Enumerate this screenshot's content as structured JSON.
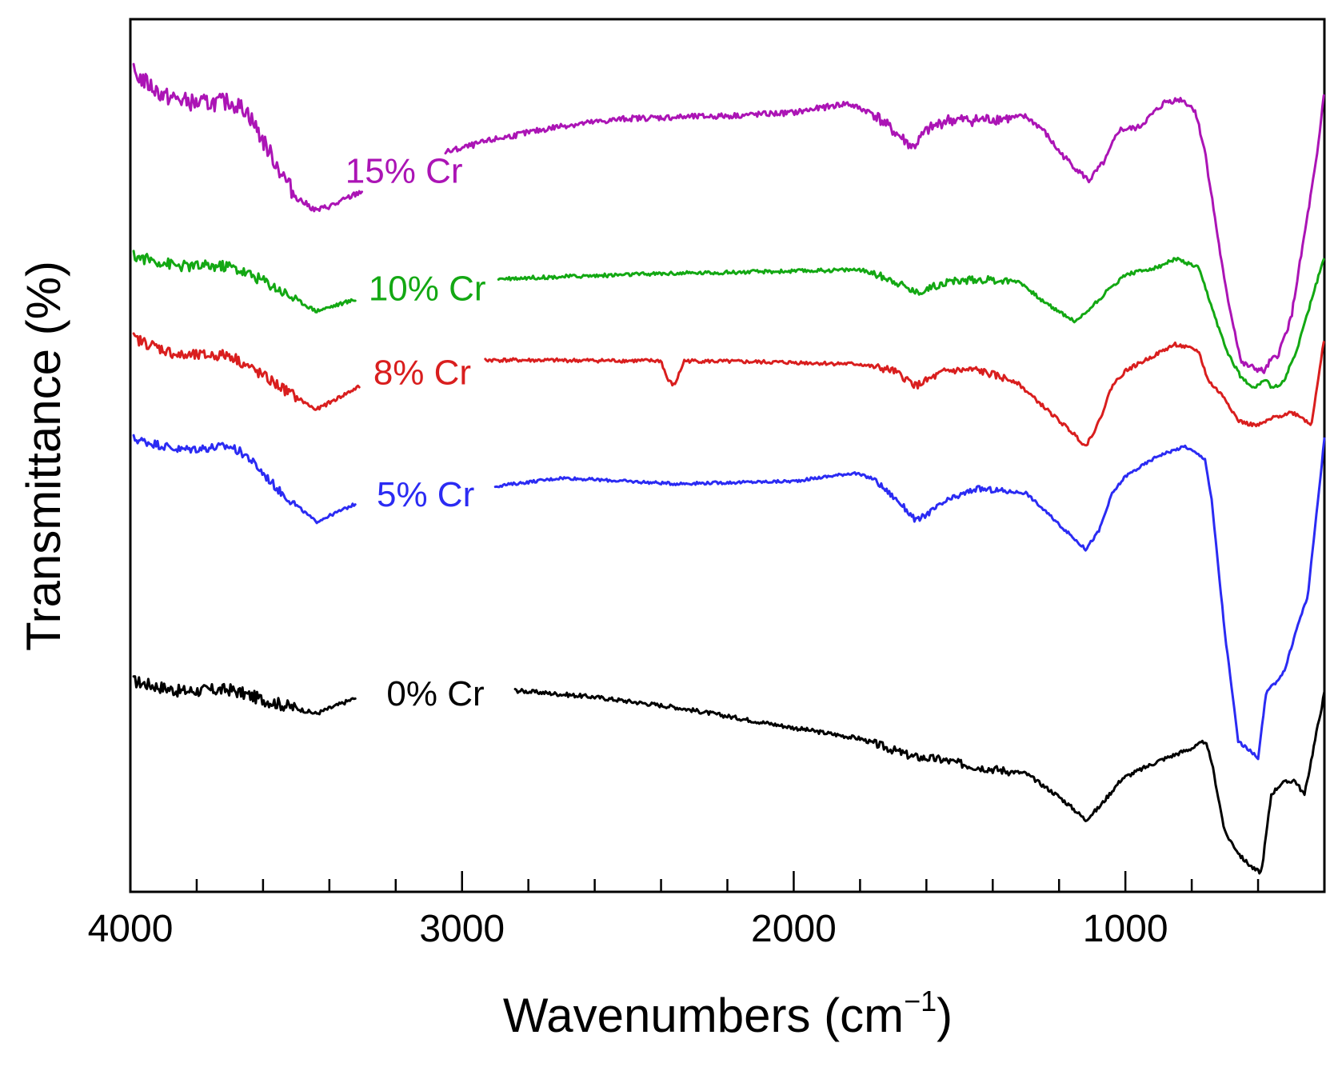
{
  "chart_data": {
    "type": "line",
    "title": "",
    "xlabel": "Wavenumbers (cm",
    "xlabel_sup": "−1",
    "xlabel_close": ")",
    "ylabel": "Transmittance (%)",
    "xlim": [
      4000,
      400
    ],
    "ylim": [
      0,
      100
    ],
    "x_ticks": [
      4000,
      3000,
      2000,
      1000
    ],
    "x_minor_step": 200,
    "grid": false,
    "legend": "inline labels",
    "series": [
      {
        "name": "0% Cr",
        "color": "#000000",
        "noise": 0.5,
        "label_at": 3150,
        "gap": [
          3320,
          2840
        ],
        "points": [
          [
            3990,
            24.2
          ],
          [
            3850,
            23.0
          ],
          [
            3700,
            23.2
          ],
          [
            3600,
            22.0
          ],
          [
            3440,
            20.3
          ],
          [
            3320,
            22.2
          ],
          [
            2840,
            23.1
          ],
          [
            2600,
            22.3
          ],
          [
            2360,
            21.1
          ],
          [
            2000,
            18.6
          ],
          [
            1800,
            17.3
          ],
          [
            1640,
            15.1
          ],
          [
            1560,
            14.8
          ],
          [
            1450,
            13.9
          ],
          [
            1300,
            13.1
          ],
          [
            1200,
            10.3
          ],
          [
            1150,
            8.6
          ],
          [
            1120,
            7.5
          ],
          [
            1080,
            9.0
          ],
          [
            1010,
            12.5
          ],
          [
            900,
            14.6
          ],
          [
            790,
            16.3
          ],
          [
            760,
            17.0
          ],
          [
            740,
            14.5
          ],
          [
            700,
            6.0
          ],
          [
            650,
            3.0
          ],
          [
            610,
            1.5
          ],
          [
            590,
            1.2
          ],
          [
            560,
            10.6
          ],
          [
            530,
            11.9
          ],
          [
            490,
            12.3
          ],
          [
            460,
            10.5
          ],
          [
            420,
            18.8
          ],
          [
            400,
            22.8
          ]
        ]
      },
      {
        "name": "5% Cr",
        "color": "#2b2bf3",
        "noise": 0.35,
        "label_at": 3150,
        "gap": [
          3320,
          2900
        ],
        "points": [
          [
            3990,
            53.4
          ],
          [
            3850,
            52.1
          ],
          [
            3700,
            52.5
          ],
          [
            3650,
            51.4
          ],
          [
            3550,
            47.1
          ],
          [
            3440,
            43.4
          ],
          [
            3320,
            45.6
          ],
          [
            2900,
            47.7
          ],
          [
            2700,
            48.7
          ],
          [
            2360,
            48.0
          ],
          [
            2000,
            48.3
          ],
          [
            1820,
            49.3
          ],
          [
            1760,
            48.6
          ],
          [
            1680,
            45.7
          ],
          [
            1630,
            43.5
          ],
          [
            1540,
            45.9
          ],
          [
            1450,
            47.4
          ],
          [
            1300,
            46.9
          ],
          [
            1200,
            43.1
          ],
          [
            1120,
            40.1
          ],
          [
            1080,
            42.3
          ],
          [
            1040,
            46.8
          ],
          [
            1000,
            48.9
          ],
          [
            900,
            51.4
          ],
          [
            820,
            52.5
          ],
          [
            760,
            51.0
          ],
          [
            740,
            46.0
          ],
          [
            700,
            30.0
          ],
          [
            660,
            17.0
          ],
          [
            630,
            16.0
          ],
          [
            600,
            15.0
          ],
          [
            575,
            22.9
          ],
          [
            550,
            23.9
          ],
          [
            520,
            25.5
          ],
          [
            480,
            31.0
          ],
          [
            450,
            34.5
          ],
          [
            400,
            53.4
          ]
        ]
      },
      {
        "name": "8% Cr",
        "color": "#d91e1e",
        "noise": 0.45,
        "label_at": 3150,
        "gap": [
          3310,
          2930
        ],
        "points": [
          [
            3990,
            65.5
          ],
          [
            3850,
            63.4
          ],
          [
            3700,
            63.5
          ],
          [
            3600,
            61.0
          ],
          [
            3440,
            56.9
          ],
          [
            3310,
            59.7
          ],
          [
            2930,
            62.9
          ],
          [
            2400,
            62.8
          ],
          [
            2380,
            60.5
          ],
          [
            2360,
            59.8
          ],
          [
            2330,
            62.8
          ],
          [
            2000,
            62.6
          ],
          [
            1800,
            62.4
          ],
          [
            1700,
            61.6
          ],
          [
            1630,
            59.8
          ],
          [
            1540,
            61.6
          ],
          [
            1450,
            61.7
          ],
          [
            1330,
            60.3
          ],
          [
            1250,
            57.4
          ],
          [
            1150,
            53.8
          ],
          [
            1120,
            52.5
          ],
          [
            1080,
            55.4
          ],
          [
            1040,
            59.8
          ],
          [
            1000,
            61.6
          ],
          [
            850,
            64.8
          ],
          [
            780,
            64.0
          ],
          [
            750,
            60.4
          ],
          [
            700,
            58.3
          ],
          [
            660,
            55.6
          ],
          [
            630,
            55.2
          ],
          [
            600,
            55.0
          ],
          [
            550,
            56.0
          ],
          [
            500,
            56.6
          ],
          [
            470,
            56.1
          ],
          [
            440,
            55.0
          ],
          [
            410,
            63.0
          ],
          [
            400,
            65.5
          ]
        ]
      },
      {
        "name": "10% Cr",
        "color": "#13a813",
        "noise": 0.45,
        "label_at": 3150,
        "gap": [
          3320,
          2890
        ],
        "points": [
          [
            3990,
            75.4
          ],
          [
            3850,
            74.2
          ],
          [
            3700,
            74.2
          ],
          [
            3600,
            72.5
          ],
          [
            3440,
            68.8
          ],
          [
            3320,
            70.2
          ],
          [
            2890,
            72.7
          ],
          [
            2400,
            73.3
          ],
          [
            2000,
            73.6
          ],
          [
            1800,
            73.8
          ],
          [
            1700,
            72.5
          ],
          [
            1630,
            71.0
          ],
          [
            1540,
            72.3
          ],
          [
            1450,
            72.6
          ],
          [
            1320,
            72.4
          ],
          [
            1250,
            70.0
          ],
          [
            1150,
            67.5
          ],
          [
            1110,
            69.0
          ],
          [
            1060,
            71.0
          ],
          [
            1000,
            73.2
          ],
          [
            900,
            74.1
          ],
          [
            850,
            75.1
          ],
          [
            780,
            74.0
          ],
          [
            750,
            70.5
          ],
          [
            700,
            64.5
          ],
          [
            650,
            60.7
          ],
          [
            610,
            59.6
          ],
          [
            580,
            60.6
          ],
          [
            555,
            59.4
          ],
          [
            520,
            60.5
          ],
          [
            480,
            64.5
          ],
          [
            440,
            70.0
          ],
          [
            400,
            75.3
          ]
        ]
      },
      {
        "name": "15% Cr",
        "color": "#ab14b5",
        "noise": 0.7,
        "label_at": 3150,
        "gap": [
          3300,
          3050
        ],
        "points": [
          [
            3990,
            97.5
          ],
          [
            3900,
            94.7
          ],
          [
            3800,
            93.8
          ],
          [
            3700,
            94.0
          ],
          [
            3650,
            93.0
          ],
          [
            3600,
            89.3
          ],
          [
            3550,
            85.8
          ],
          [
            3500,
            82.5
          ],
          [
            3440,
            80.9
          ],
          [
            3380,
            81.7
          ],
          [
            3300,
            83.3
          ],
          [
            3050,
            87.9
          ],
          [
            2900,
            89.5
          ],
          [
            2700,
            91.1
          ],
          [
            2500,
            92.0
          ],
          [
            2200,
            92.3
          ],
          [
            2000,
            92.7
          ],
          [
            1840,
            93.8
          ],
          [
            1760,
            92.6
          ],
          [
            1700,
            90.5
          ],
          [
            1640,
            88.5
          ],
          [
            1600,
            90.5
          ],
          [
            1540,
            91.8
          ],
          [
            1450,
            91.8
          ],
          [
            1300,
            92.2
          ],
          [
            1250,
            90.7
          ],
          [
            1200,
            88.0
          ],
          [
            1150,
            86.0
          ],
          [
            1110,
            84.5
          ],
          [
            1060,
            87.0
          ],
          [
            1020,
            90.6
          ],
          [
            960,
            90.9
          ],
          [
            880,
            94.0
          ],
          [
            830,
            94.3
          ],
          [
            790,
            93.0
          ],
          [
            760,
            88.0
          ],
          [
            700,
            72.0
          ],
          [
            650,
            62.5
          ],
          [
            610,
            61.9
          ],
          [
            580,
            61.5
          ],
          [
            565,
            62.7
          ],
          [
            540,
            63.5
          ],
          [
            500,
            68.0
          ],
          [
            460,
            78.0
          ],
          [
            420,
            88.0
          ],
          [
            400,
            95.6
          ]
        ]
      }
    ]
  }
}
